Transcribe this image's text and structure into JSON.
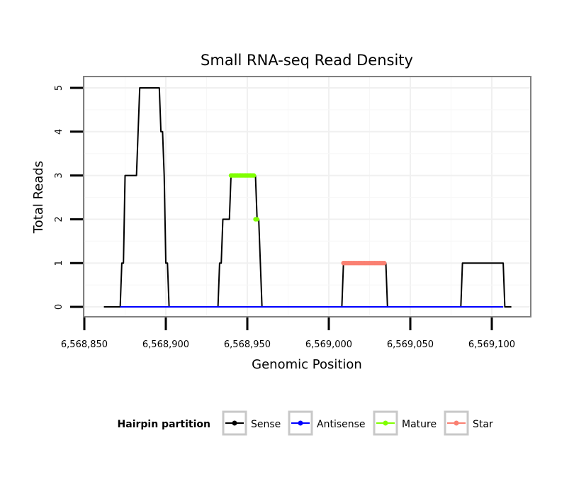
{
  "chart_data": {
    "type": "line",
    "title": "Small RNA-seq Read Density",
    "xlabel": "Genomic Position",
    "ylabel": "Total Reads",
    "xlim": [
      6568850,
      6569110
    ],
    "ylim": [
      -0.2,
      5.2
    ],
    "x_ticks": [
      6568850,
      6568900,
      6568950,
      6569000,
      6569050,
      6569100
    ],
    "x_tick_labels": [
      "6,568,850",
      "6,568,900",
      "6,568,950",
      "6,569,000",
      "6,569,050",
      "6,569,100"
    ],
    "y_ticks": [
      0,
      1,
      2,
      3,
      4,
      5
    ],
    "y_tick_labels": [
      "0",
      "1",
      "2",
      "3",
      "4",
      "5"
    ],
    "grid": true,
    "legend": {
      "title": "Hairpin partition",
      "position": "bottom",
      "entries": [
        "Sense",
        "Antisense",
        "Mature",
        "Star"
      ]
    },
    "series": [
      {
        "name": "Sense",
        "color": "#000000",
        "style": "line",
        "x": [
          6568862,
          6568872,
          6568873,
          6568874,
          6568875,
          6568877,
          6568882,
          6568884,
          6568896,
          6568897,
          6568898,
          6568899,
          6568900,
          6568901,
          6568902,
          6568903,
          6568904,
          6568932,
          6568933,
          6568934,
          6568935,
          6568936,
          6568939,
          6568940,
          6568941,
          6568955,
          6568956,
          6568957,
          6568958,
          6568959,
          6569008,
          6569009,
          6569035,
          6569036,
          6569081,
          6569082,
          6569107,
          6569108,
          6569112
        ],
        "y": [
          0,
          0,
          1,
          1,
          3,
          3,
          3,
          5,
          5,
          4,
          4,
          3,
          1,
          1,
          0,
          0,
          0,
          0,
          1,
          1,
          2,
          2,
          2,
          3,
          3,
          3,
          2,
          2,
          1,
          0,
          0,
          1,
          1,
          0,
          0,
          1,
          1,
          0,
          0
        ]
      },
      {
        "name": "Antisense",
        "color": "#0000ff",
        "style": "line",
        "x": [
          6568872,
          6568904,
          6568933,
          6568959,
          6569008,
          6569035,
          6569081,
          6569107
        ],
        "y": [
          0,
          0,
          0,
          0,
          0,
          0,
          0,
          0
        ]
      },
      {
        "name": "Mature",
        "color": "#80ff00",
        "style": "points",
        "x": [
          6568940,
          6568941,
          6568942,
          6568943,
          6568944,
          6568945,
          6568946,
          6568947,
          6568948,
          6568949,
          6568950,
          6568951,
          6568952,
          6568953,
          6568954,
          6568955,
          6568956
        ],
        "y": [
          3,
          3,
          3,
          3,
          3,
          3,
          3,
          3,
          3,
          3,
          3,
          3,
          3,
          3,
          3,
          2,
          2
        ]
      },
      {
        "name": "Star",
        "color": "#fa8072",
        "style": "points",
        "x": [
          6569009,
          6569010,
          6569011,
          6569012,
          6569013,
          6569014,
          6569015,
          6569016,
          6569017,
          6569018,
          6569019,
          6569020,
          6569021,
          6569022,
          6569023,
          6569024,
          6569025,
          6569026,
          6569027,
          6569028,
          6569029,
          6569030,
          6569031,
          6569032,
          6569033,
          6569034
        ],
        "y": [
          1,
          1,
          1,
          1,
          1,
          1,
          1,
          1,
          1,
          1,
          1,
          1,
          1,
          1,
          1,
          1,
          1,
          1,
          1,
          1,
          1,
          1,
          1,
          1,
          1,
          1
        ]
      }
    ]
  }
}
